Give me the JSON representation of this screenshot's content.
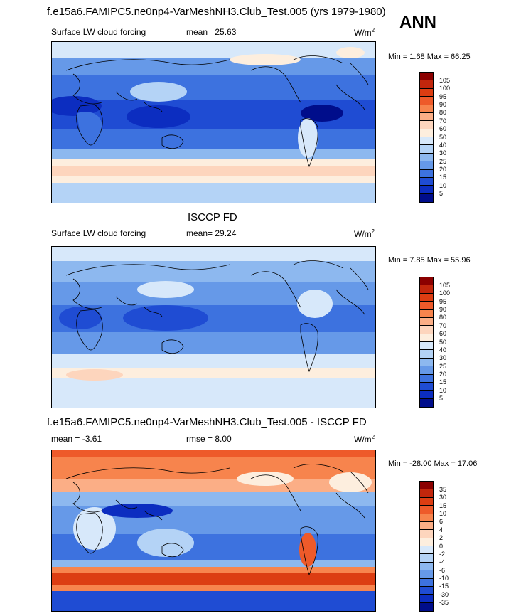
{
  "panel1": {
    "title": "f.e15a6.FAMIPC5.ne0np4-VarMeshNH3.Club_Test.005 (yrs 1979-1980)",
    "season": "ANN",
    "variable": "Surface LW cloud forcing",
    "mean": "mean=  25.63",
    "units": "W/m",
    "units_sup": "2",
    "minmax": "Min =   1.68 Max =  66.25"
  },
  "panel2": {
    "title": "ISCCP FD",
    "variable": "Surface LW cloud forcing",
    "mean": "mean=  29.24",
    "units": "W/m",
    "units_sup": "2",
    "minmax": "Min =   7.85 Max =  55.96"
  },
  "panel3": {
    "title": "f.e15a6.FAMIPC5.ne0np4-VarMeshNH3.Club_Test.005 - ISCCP FD",
    "mean": "mean =  -3.61",
    "rmse": "rmse =   8.00",
    "units": "W/m",
    "units_sup": "2",
    "minmax": "Min = -28.00 Max =  17.06"
  },
  "colorbar_abs": {
    "labels": [
      "105",
      "100",
      "95",
      "90",
      "80",
      "70",
      "60",
      "50",
      "40",
      "30",
      "25",
      "20",
      "15",
      "10",
      "5"
    ],
    "colors": [
      "#8b0000",
      "#c2260c",
      "#dc3d12",
      "#ee5a2a",
      "#f7844d",
      "#fbae86",
      "#fdd5bd",
      "#fdeede",
      "#d7e8fa",
      "#b4d3f6",
      "#8db8ef",
      "#6699e8",
      "#3d72df",
      "#1f4cd3",
      "#0c2dc0",
      "#000d8b"
    ]
  },
  "colorbar_diff": {
    "labels": [
      "35",
      "30",
      "15",
      "10",
      "6",
      "4",
      "2",
      "0",
      "-2",
      "-4",
      "-6",
      "-10",
      "-15",
      "-30",
      "-35"
    ],
    "colors": [
      "#8b0000",
      "#c2260c",
      "#dc3d12",
      "#ee5a2a",
      "#f7844d",
      "#fbae86",
      "#fdd5bd",
      "#fdeede",
      "#d7e8fa",
      "#b4d3f6",
      "#8db8ef",
      "#6699e8",
      "#3d72df",
      "#1f4cd3",
      "#0c2dc0",
      "#000d8b"
    ]
  }
}
